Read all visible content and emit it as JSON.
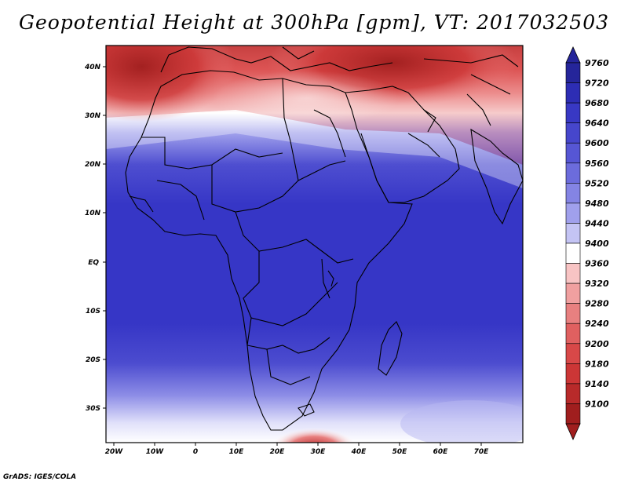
{
  "title": "Geopotential Height at 300hPa [gpm], VT: 2017032503",
  "credit": "GrADS: IGES/COLA",
  "lat_labels": [
    "40N",
    "30N",
    "20N",
    "10N",
    "EQ",
    "10S",
    "20S",
    "30S"
  ],
  "lon_labels": [
    "20W",
    "10W",
    "0",
    "10E",
    "20E",
    "30E",
    "40E",
    "50E",
    "60E",
    "70E"
  ],
  "colorbar": {
    "labels": [
      "9760",
      "9720",
      "9680",
      "9640",
      "9600",
      "9560",
      "9520",
      "9480",
      "9440",
      "9400",
      "9360",
      "9320",
      "9280",
      "9240",
      "9200",
      "9180",
      "9140",
      "9100"
    ],
    "colors": [
      "#25259a",
      "#2d2db4",
      "#3838c4",
      "#4646cc",
      "#5656d4",
      "#6c6cdc",
      "#8484e4",
      "#a0a0ec",
      "#c4c4f4",
      "#ffffff",
      "#f8c4c4",
      "#f0a0a0",
      "#e88080",
      "#e06060",
      "#d84848",
      "#cc3636",
      "#b82a2a",
      "#a01e1e"
    ]
  },
  "map": {
    "projection": "lat-lon",
    "lon_range": [
      -22,
      80
    ],
    "lat_range": [
      -37,
      45
    ],
    "field": "Geopotential Height at 300hPa",
    "units": "gpm"
  }
}
